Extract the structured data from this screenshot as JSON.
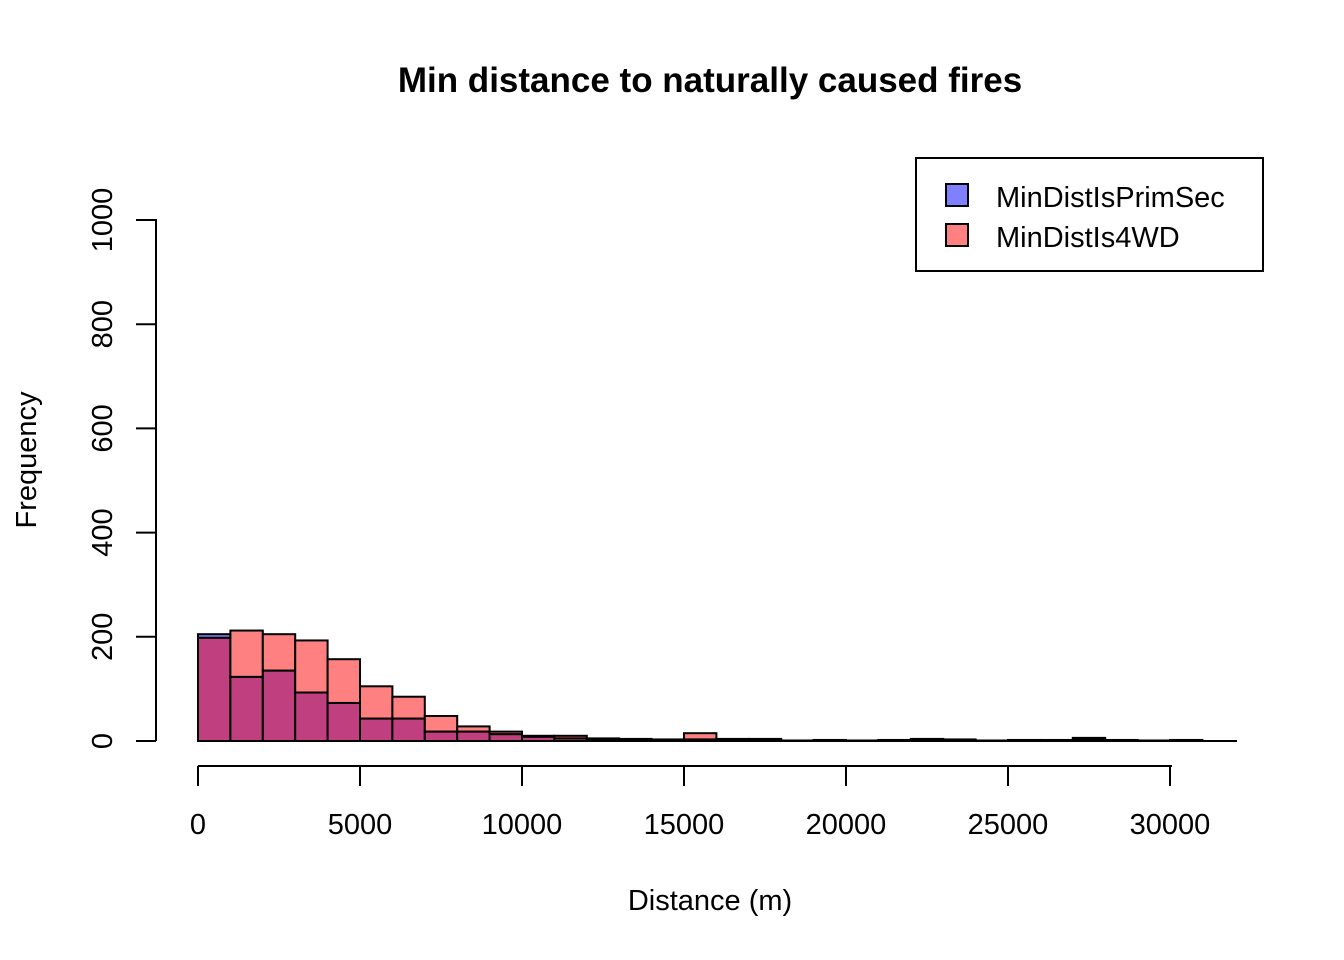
{
  "chart_data": {
    "type": "bar",
    "title": "Min distance to naturally caused fires",
    "xlabel": "Distance (m)",
    "ylabel": "Frequency",
    "xlim": [
      0,
      32000
    ],
    "ylim": [
      0,
      1000
    ],
    "x_ticks": [
      0,
      5000,
      10000,
      15000,
      20000,
      25000,
      30000
    ],
    "y_ticks": [
      0,
      200,
      400,
      600,
      800,
      1000
    ],
    "bin_width": 1000,
    "bin_starts": [
      0,
      1000,
      2000,
      3000,
      4000,
      5000,
      6000,
      7000,
      8000,
      9000,
      10000,
      11000,
      12000,
      13000,
      14000,
      15000,
      16000,
      17000,
      18000,
      19000,
      20000,
      21000,
      22000,
      23000,
      24000,
      25000,
      26000,
      27000,
      28000,
      29000,
      30000
    ],
    "series": [
      {
        "name": "MinDistIsPrimSec",
        "color": "#8080ff",
        "values": [
          205,
          123,
          135,
          93,
          73,
          43,
          43,
          18,
          18,
          13,
          8,
          5,
          3,
          3,
          3,
          3,
          2,
          2,
          1,
          1,
          1,
          1,
          2,
          2,
          1,
          1,
          1,
          3,
          1,
          1,
          1
        ]
      },
      {
        "name": "MinDistIs4WD",
        "color": "#ff8080",
        "values": [
          198,
          212,
          205,
          193,
          157,
          105,
          85,
          48,
          28,
          18,
          10,
          10,
          5,
          4,
          3,
          15,
          4,
          4,
          1,
          2,
          1,
          2,
          4,
          3,
          1,
          2,
          2,
          6,
          2,
          1,
          2
        ]
      }
    ],
    "overlap_color": "#c0407f",
    "legend": {
      "position": "top-right",
      "entries": [
        "MinDistIsPrimSec",
        "MinDistIs4WD"
      ]
    }
  }
}
